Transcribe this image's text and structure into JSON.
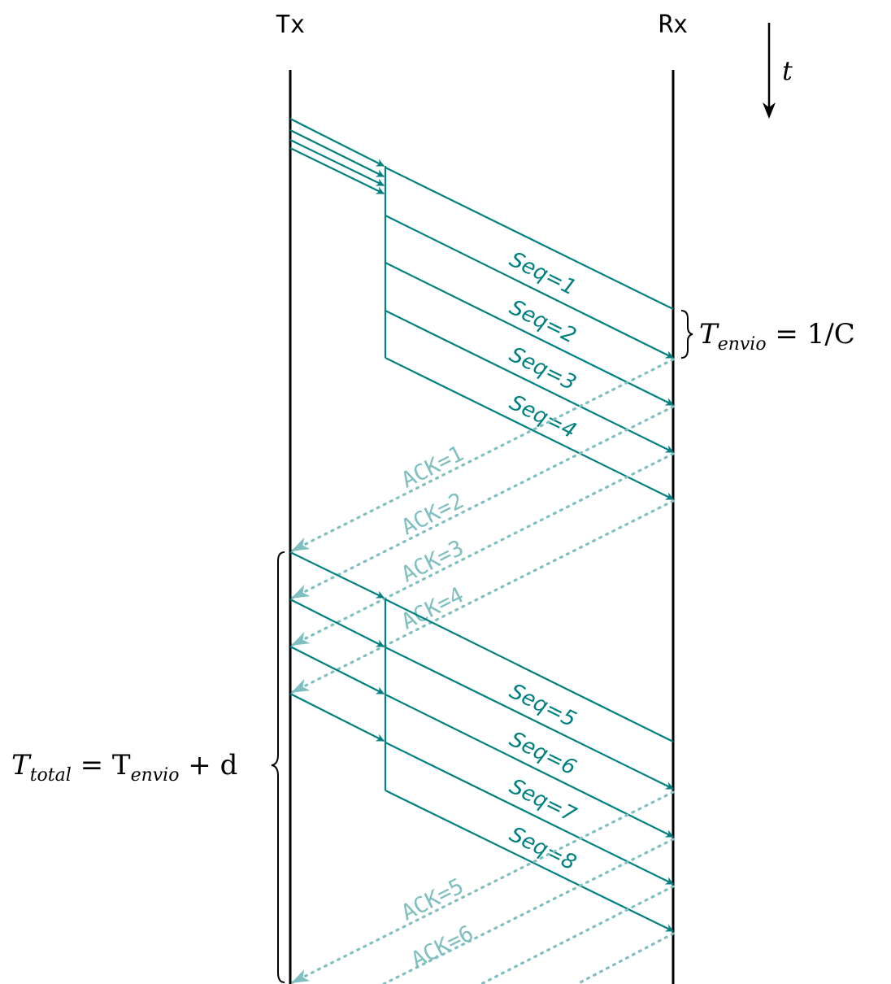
{
  "labels": {
    "tx": "Tx",
    "rx": "Rx",
    "time": "t",
    "tenvio_label": "T",
    "tenvio_sub": "envio",
    "tenvio_rhs": " = 1/C",
    "ttotal_label": "T",
    "ttotal_sub": "total",
    "ttotal_mid": " = T",
    "ttotal_sub2": "envio",
    "ttotal_rhs": " + d"
  },
  "packets": [
    "Seq=1",
    "Seq=2",
    "Seq=3",
    "Seq=4",
    "Seq=5",
    "Seq=6",
    "Seq=7",
    "Seq=8"
  ],
  "acks": [
    "ACK=1",
    "ACK=2",
    "ACK=3",
    "ACK=4",
    "ACK=5",
    "ACK=6"
  ],
  "colors": {
    "data": "#008080",
    "ack": "#7fbfbf",
    "axis": "#000000"
  }
}
